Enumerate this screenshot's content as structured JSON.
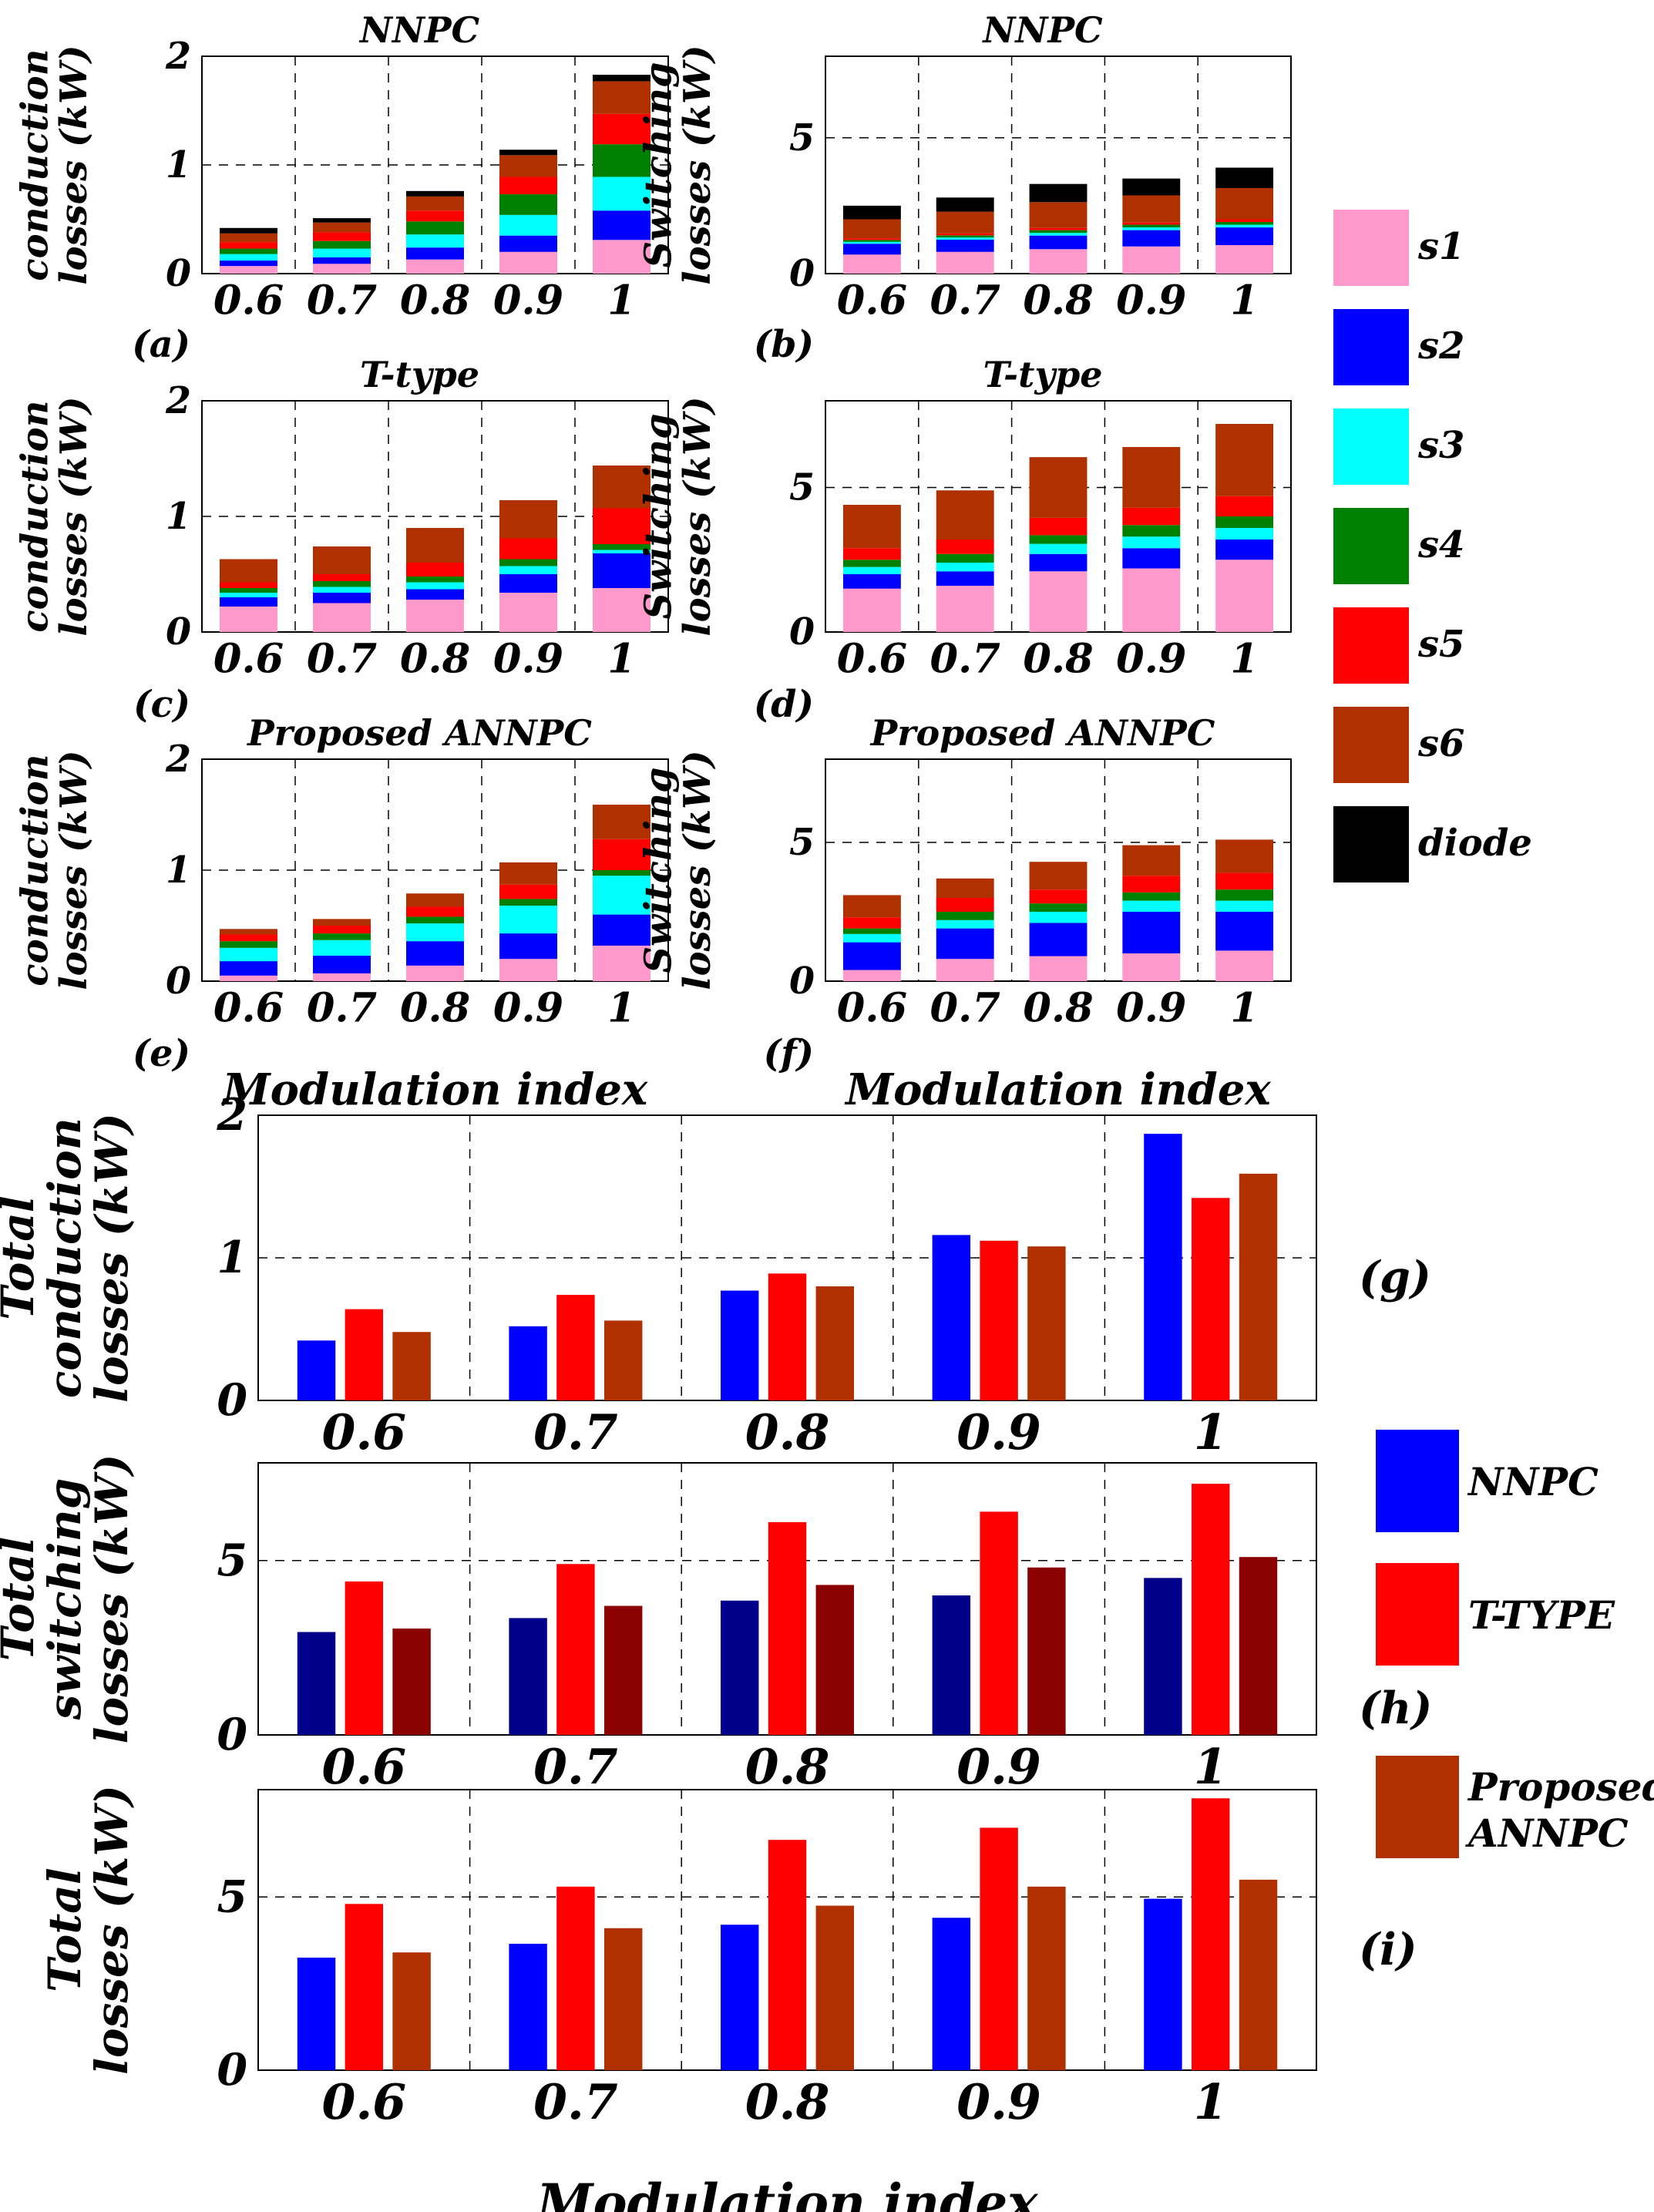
{
  "figure_label": "Modulation index",
  "colors": {
    "s1": "#ff99cc",
    "s2": "#0000ff",
    "s3": "#00ffff",
    "s4": "#008000",
    "s5": "#ff0000",
    "s6": "#b03000",
    "diode": "#000000",
    "nnpc": "#0000ff",
    "ttype": "#ff0000",
    "annpc": "#b03000",
    "nnpc_sw": "#00008b",
    "annpc_sw": "#8b0000"
  },
  "legend_top": {
    "items": [
      {
        "key": "s1",
        "label": "s1"
      },
      {
        "key": "s2",
        "label": "s2"
      },
      {
        "key": "s3",
        "label": "s3"
      },
      {
        "key": "s4",
        "label": "s4"
      },
      {
        "key": "s5",
        "label": "s5"
      },
      {
        "key": "s6",
        "label": "s6"
      },
      {
        "key": "diode",
        "label": "diode"
      }
    ]
  },
  "legend_bottom": {
    "items": [
      {
        "key": "nnpc",
        "label": "NNPC"
      },
      {
        "key": "ttype",
        "label": "T-TYPE"
      },
      {
        "key": "annpc",
        "label": "Proposed ANNPC"
      }
    ],
    "annpc_line1": "Proposed",
    "annpc_line2": "ANNPC"
  },
  "chart_data": [
    {
      "id": "a",
      "type": "bar",
      "stacked": true,
      "title": "NNPC",
      "panel_label": "(a)",
      "ylabel": [
        "conduction",
        "losses (kW)"
      ],
      "xlabel": "",
      "categories": [
        "0.6",
        "0.7",
        "0.8",
        "0.9",
        "1"
      ],
      "ylim": [
        0,
        2
      ],
      "yticks": [
        0,
        1,
        2
      ],
      "series": [
        {
          "name": "s1",
          "values": [
            0.07,
            0.09,
            0.13,
            0.2,
            0.31
          ]
        },
        {
          "name": "s2",
          "values": [
            0.05,
            0.06,
            0.11,
            0.15,
            0.27
          ]
        },
        {
          "name": "s3",
          "values": [
            0.06,
            0.08,
            0.12,
            0.19,
            0.31
          ]
        },
        {
          "name": "s4",
          "values": [
            0.05,
            0.07,
            0.12,
            0.19,
            0.3
          ]
        },
        {
          "name": "s5",
          "values": [
            0.06,
            0.08,
            0.1,
            0.16,
            0.28
          ]
        },
        {
          "name": "s6",
          "values": [
            0.08,
            0.09,
            0.13,
            0.2,
            0.3
          ]
        },
        {
          "name": "diode",
          "values": [
            0.05,
            0.04,
            0.05,
            0.05,
            0.06
          ]
        }
      ]
    },
    {
      "id": "b",
      "type": "bar",
      "stacked": true,
      "title": "NNPC",
      "panel_label": "(b)",
      "ylabel": [
        "Switching",
        "losses (kW)"
      ],
      "xlabel": "",
      "categories": [
        "0.6",
        "0.7",
        "0.8",
        "0.9",
        "1"
      ],
      "ylim": [
        0,
        8
      ],
      "yticks": [
        0,
        5
      ],
      "series": [
        {
          "name": "s1",
          "values": [
            0.7,
            0.8,
            0.9,
            1.0,
            1.05
          ]
        },
        {
          "name": "s2",
          "values": [
            0.4,
            0.45,
            0.5,
            0.6,
            0.65
          ]
        },
        {
          "name": "s3",
          "values": [
            0.07,
            0.08,
            0.1,
            0.1,
            0.1
          ]
        },
        {
          "name": "s4",
          "values": [
            0.07,
            0.08,
            0.1,
            0.1,
            0.1
          ]
        },
        {
          "name": "s5",
          "values": [
            0.06,
            0.07,
            0.08,
            0.08,
            0.1
          ]
        },
        {
          "name": "s6",
          "values": [
            0.7,
            0.8,
            0.95,
            1.0,
            1.15
          ]
        },
        {
          "name": "diode",
          "values": [
            0.5,
            0.52,
            0.67,
            0.62,
            0.75
          ]
        }
      ]
    },
    {
      "id": "c",
      "type": "bar",
      "stacked": true,
      "title": "T-type",
      "panel_label": "(c)",
      "ylabel": [
        "conduction",
        "losses (kW)"
      ],
      "xlabel": "",
      "categories": [
        "0.6",
        "0.7",
        "0.8",
        "0.9",
        "1"
      ],
      "ylim": [
        0,
        2
      ],
      "yticks": [
        0,
        1,
        2
      ],
      "series": [
        {
          "name": "s1",
          "values": [
            0.22,
            0.25,
            0.28,
            0.34,
            0.38
          ]
        },
        {
          "name": "s2",
          "values": [
            0.08,
            0.09,
            0.09,
            0.16,
            0.3
          ]
        },
        {
          "name": "s3",
          "values": [
            0.04,
            0.05,
            0.06,
            0.07,
            0.03
          ]
        },
        {
          "name": "s4",
          "values": [
            0.04,
            0.05,
            0.05,
            0.06,
            0.05
          ]
        },
        {
          "name": "s5",
          "values": [
            0.05,
            0.06,
            0.12,
            0.18,
            0.31
          ]
        },
        {
          "name": "s6",
          "values": [
            0.2,
            0.24,
            0.3,
            0.33,
            0.37
          ]
        }
      ]
    },
    {
      "id": "d",
      "type": "bar",
      "stacked": true,
      "title": "T-type",
      "panel_label": "(d)",
      "ylabel": [
        "Switching",
        "losses (kW)"
      ],
      "xlabel": "",
      "categories": [
        "0.6",
        "0.7",
        "0.8",
        "0.9",
        "1"
      ],
      "ylim": [
        0,
        8
      ],
      "yticks": [
        0,
        5
      ],
      "series": [
        {
          "name": "s1",
          "values": [
            1.5,
            1.6,
            2.1,
            2.2,
            2.5
          ]
        },
        {
          "name": "s2",
          "values": [
            0.5,
            0.5,
            0.6,
            0.7,
            0.7
          ]
        },
        {
          "name": "s3",
          "values": [
            0.25,
            0.3,
            0.35,
            0.4,
            0.4
          ]
        },
        {
          "name": "s4",
          "values": [
            0.25,
            0.3,
            0.3,
            0.4,
            0.4
          ]
        },
        {
          "name": "s5",
          "values": [
            0.4,
            0.5,
            0.6,
            0.6,
            0.7
          ]
        },
        {
          "name": "s6",
          "values": [
            1.5,
            1.7,
            2.1,
            2.1,
            2.5
          ]
        }
      ]
    },
    {
      "id": "e",
      "type": "bar",
      "stacked": true,
      "title": "Proposed ANNPC",
      "panel_label": "(e)",
      "ylabel": [
        "conduction",
        "losses (kW)"
      ],
      "xlabel": "Modulation index",
      "categories": [
        "0.6",
        "0.7",
        "0.8",
        "0.9",
        "1"
      ],
      "ylim": [
        0,
        2
      ],
      "yticks": [
        0,
        1,
        2
      ],
      "series": [
        {
          "name": "s1",
          "values": [
            0.05,
            0.07,
            0.14,
            0.2,
            0.32
          ]
        },
        {
          "name": "s2",
          "values": [
            0.13,
            0.16,
            0.22,
            0.23,
            0.28
          ]
        },
        {
          "name": "s3",
          "values": [
            0.12,
            0.14,
            0.16,
            0.25,
            0.35
          ]
        },
        {
          "name": "s4",
          "values": [
            0.06,
            0.06,
            0.06,
            0.06,
            0.05
          ]
        },
        {
          "name": "s5",
          "values": [
            0.06,
            0.07,
            0.09,
            0.13,
            0.28
          ]
        },
        {
          "name": "s6",
          "values": [
            0.05,
            0.06,
            0.12,
            0.2,
            0.31
          ]
        }
      ]
    },
    {
      "id": "f",
      "type": "bar",
      "stacked": true,
      "title": "Proposed ANNPC",
      "panel_label": "(f)",
      "ylabel": [
        "Switching",
        "losses (kW)"
      ],
      "xlabel": "Modulation index",
      "categories": [
        "0.6",
        "0.7",
        "0.8",
        "0.9",
        "1"
      ],
      "ylim": [
        0,
        8
      ],
      "yticks": [
        0,
        5
      ],
      "series": [
        {
          "name": "s1",
          "values": [
            0.4,
            0.8,
            0.9,
            1.0,
            1.1
          ]
        },
        {
          "name": "s2",
          "values": [
            1.0,
            1.1,
            1.2,
            1.5,
            1.4
          ]
        },
        {
          "name": "s3",
          "values": [
            0.3,
            0.3,
            0.4,
            0.4,
            0.4
          ]
        },
        {
          "name": "s4",
          "values": [
            0.2,
            0.3,
            0.3,
            0.3,
            0.4
          ]
        },
        {
          "name": "s5",
          "values": [
            0.4,
            0.5,
            0.5,
            0.6,
            0.6
          ]
        },
        {
          "name": "s6",
          "values": [
            0.8,
            0.7,
            1.0,
            1.1,
            1.2
          ]
        }
      ]
    },
    {
      "id": "g",
      "type": "bar",
      "stacked": false,
      "title": "",
      "panel_label": "(g)",
      "ylabel": [
        "Total",
        "conduction",
        "losses (kW)"
      ],
      "xlabel": "",
      "categories": [
        "0.6",
        "0.7",
        "0.8",
        "0.9",
        "1"
      ],
      "ylim": [
        0,
        2
      ],
      "yticks": [
        0,
        1,
        2
      ],
      "series": [
        {
          "name": "NNPC",
          "color_key": "nnpc",
          "values": [
            0.42,
            0.52,
            0.77,
            1.16,
            1.87
          ]
        },
        {
          "name": "T-TYPE",
          "color_key": "ttype",
          "values": [
            0.64,
            0.74,
            0.89,
            1.12,
            1.42
          ]
        },
        {
          "name": "Proposed ANNPC",
          "color_key": "annpc",
          "values": [
            0.48,
            0.56,
            0.8,
            1.08,
            1.59
          ]
        }
      ]
    },
    {
      "id": "h",
      "type": "bar",
      "stacked": false,
      "title": "",
      "panel_label": "(h)",
      "ylabel": [
        "Total",
        "switching",
        "losses (kW)"
      ],
      "xlabel": "",
      "categories": [
        "0.6",
        "0.7",
        "0.8",
        "0.9",
        "1"
      ],
      "ylim": [
        0,
        7.8
      ],
      "yticks": [
        0,
        5
      ],
      "series": [
        {
          "name": "NNPC",
          "color_key": "nnpc_sw",
          "values": [
            2.95,
            3.35,
            3.85,
            4.0,
            4.5
          ]
        },
        {
          "name": "T-TYPE",
          "color_key": "ttype",
          "values": [
            4.4,
            4.9,
            6.1,
            6.4,
            7.2
          ]
        },
        {
          "name": "Proposed ANNPC",
          "color_key": "annpc_sw",
          "values": [
            3.05,
            3.7,
            4.3,
            4.8,
            5.1
          ]
        }
      ]
    },
    {
      "id": "i",
      "type": "bar",
      "stacked": false,
      "title": "",
      "panel_label": "(i)",
      "ylabel": [
        "Total",
        "losses (kW)"
      ],
      "xlabel": "Modulation index",
      "categories": [
        "0.6",
        "0.7",
        "0.8",
        "0.9",
        "1"
      ],
      "ylim": [
        0,
        8.1
      ],
      "yticks": [
        0,
        5
      ],
      "series": [
        {
          "name": "NNPC",
          "color_key": "nnpc",
          "values": [
            3.25,
            3.65,
            4.2,
            4.4,
            4.95
          ]
        },
        {
          "name": "T-TYPE",
          "color_key": "ttype",
          "values": [
            4.8,
            5.3,
            6.65,
            7.0,
            7.85
          ]
        },
        {
          "name": "Proposed ANNPC",
          "color_key": "annpc",
          "values": [
            3.4,
            4.1,
            4.75,
            5.3,
            5.5
          ]
        }
      ]
    }
  ]
}
